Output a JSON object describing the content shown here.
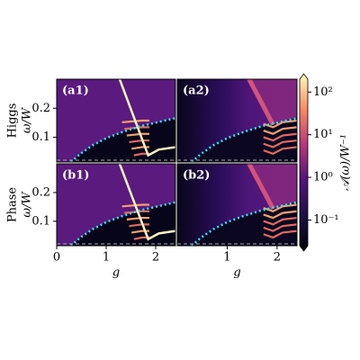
{
  "chart_data": [
    {
      "type": "heatmap",
      "label": "(a1)",
      "row_label": "Higgs",
      "ylabel": "ω/W",
      "xlim": [
        0,
        2.4
      ],
      "ylim": [
        0.015,
        0.3
      ],
      "yticks": [
        0.1,
        0.2
      ]
    },
    {
      "type": "heatmap",
      "label": "(a2)",
      "xlim": [
        0,
        2.4
      ],
      "ylim": [
        0.015,
        0.3
      ]
    },
    {
      "type": "heatmap",
      "label": "(b1)",
      "row_label": "Phase",
      "ylabel": "ω/W",
      "xlabel": "g",
      "xlim": [
        0,
        2.4
      ],
      "ylim": [
        0.015,
        0.3
      ],
      "xticks": [
        0,
        1,
        2
      ],
      "yticks": [
        0.1,
        0.2
      ]
    },
    {
      "type": "heatmap",
      "label": "(b2)",
      "xlabel": "g",
      "xlim": [
        0,
        2.4
      ],
      "ylim": [
        0.015,
        0.3
      ],
      "xticks": [
        1,
        2
      ]
    },
    {
      "type": "colorbar",
      "label": "𝒜(ω)/W⁻¹",
      "log": true,
      "ylim": [
        0.025,
        200
      ],
      "yticks": [
        {
          "value": 0.1,
          "label": "10⁻¹"
        },
        {
          "value": 1,
          "label": "10⁰"
        },
        {
          "value": 10,
          "label": "10¹"
        },
        {
          "value": 100,
          "label": "10²"
        }
      ]
    }
  ]
}
